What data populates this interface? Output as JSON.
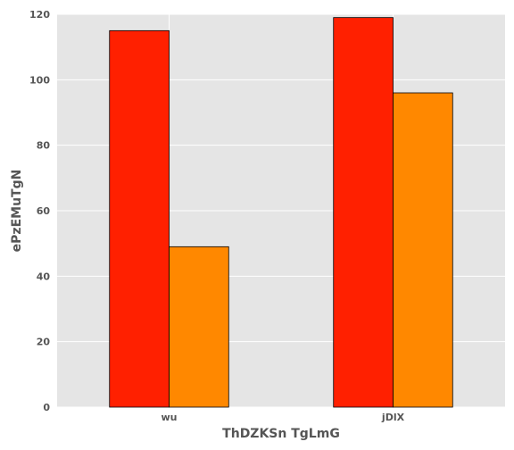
{
  "chart_data": {
    "type": "bar",
    "title": "",
    "xlabel": "ThDZKSn TgLmG",
    "ylabel": "ePzEMuTgN",
    "categories": [
      "wu",
      "jDlX"
    ],
    "series": [
      {
        "color": "#ff2000",
        "values": [
          115,
          119
        ]
      },
      {
        "color": "#ff8800",
        "values": [
          49,
          96
        ]
      }
    ],
    "ylim": [
      0,
      120
    ],
    "yticks": [
      0,
      20,
      40,
      60,
      80,
      100,
      120
    ],
    "grid": true,
    "legend": "none",
    "background": "#e5e5e5"
  }
}
